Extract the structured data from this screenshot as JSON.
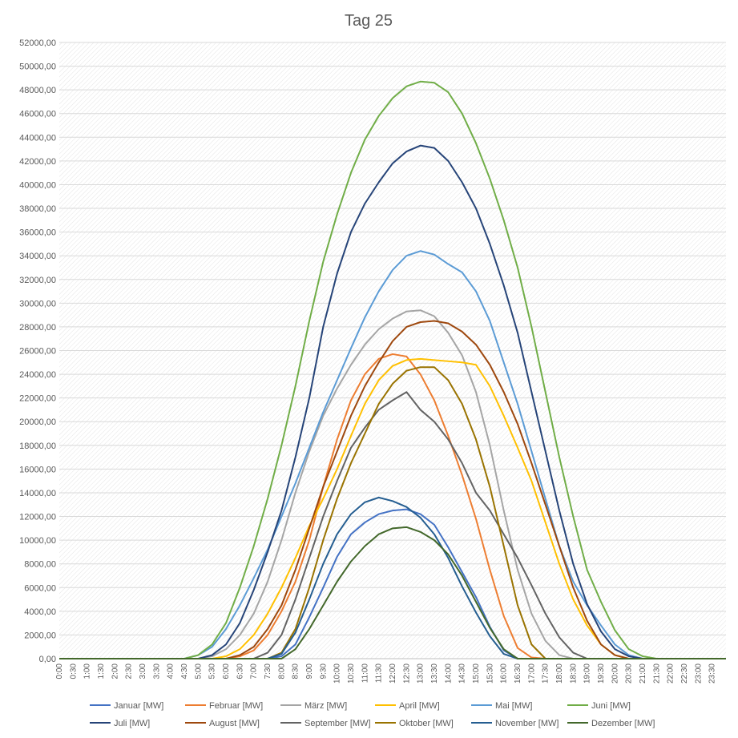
{
  "chart_data": {
    "type": "line",
    "title": "Tag 25",
    "xlabel": "",
    "ylabel": "",
    "ylim": [
      0,
      52000
    ],
    "y_step": 2000,
    "y_tick_labels": [
      "0,00",
      "2000,00",
      "4000,00",
      "6000,00",
      "8000,00",
      "10000,00",
      "12000,00",
      "14000,00",
      "16000,00",
      "18000,00",
      "20000,00",
      "22000,00",
      "24000,00",
      "26000,00",
      "28000,00",
      "30000,00",
      "32000,00",
      "34000,00",
      "36000,00",
      "38000,00",
      "40000,00",
      "42000,00",
      "44000,00",
      "46000,00",
      "48000,00",
      "50000,00",
      "52000,00"
    ],
    "x_tick_labels": [
      "0:00",
      "0:30",
      "1:00",
      "1:30",
      "2:00",
      "2:30",
      "3:00",
      "3:30",
      "4:00",
      "4:30",
      "5:00",
      "5:30",
      "6:00",
      "6:30",
      "7:00",
      "7:30",
      "8:00",
      "8:30",
      "9:00",
      "9:30",
      "10:00",
      "10:30",
      "11:00",
      "11:30",
      "12:00",
      "12:30",
      "13:00",
      "13:30",
      "14:00",
      "14:30",
      "15:00",
      "15:30",
      "16:00",
      "16:30",
      "17:00",
      "17:30",
      "18:00",
      "18:30",
      "19:00",
      "19:30",
      "20:00",
      "20:30",
      "21:00",
      "21:30",
      "22:00",
      "22:30",
      "23:00",
      "23:30"
    ],
    "x_unit": "hours",
    "grid": true,
    "legend_position": "bottom",
    "series": [
      {
        "name": "Januar [MW]",
        "color": "#4472c4",
        "x": [
          7.5,
          8,
          8.5,
          9,
          9.5,
          10,
          10.5,
          11,
          11.5,
          12,
          12.5,
          13,
          13.5,
          14,
          14.5,
          15,
          15.5,
          16,
          16.5
        ],
        "y": [
          0,
          200,
          1200,
          3500,
          6000,
          8600,
          10500,
          11500,
          12200,
          12500,
          12600,
          12200,
          11300,
          9400,
          7300,
          5200,
          2700,
          700,
          0
        ]
      },
      {
        "name": "Februar [MW]",
        "color": "#ed7d31",
        "x": [
          6,
          6.5,
          7,
          7.5,
          8,
          8.5,
          9,
          9.5,
          10,
          10.5,
          11,
          11.5,
          12,
          12.5,
          13,
          13.5,
          14,
          14.5,
          15,
          15.5,
          16,
          16.5,
          17,
          17.5
        ],
        "y": [
          0,
          200,
          700,
          2000,
          4000,
          6500,
          10000,
          14500,
          18500,
          21800,
          24000,
          25300,
          25700,
          25500,
          24000,
          21800,
          18800,
          15500,
          11800,
          7500,
          3600,
          900,
          100,
          0
        ]
      },
      {
        "name": "März [MW]",
        "color": "#a5a5a5",
        "x": [
          5,
          5.5,
          6,
          6.5,
          7,
          7.5,
          8,
          8.5,
          9,
          9.5,
          10,
          10.5,
          11,
          11.5,
          12,
          12.5,
          13,
          13.5,
          14,
          14.5,
          15,
          15.5,
          16,
          16.5,
          17,
          17.5,
          18,
          18.5,
          19
        ],
        "y": [
          0,
          200,
          800,
          2000,
          3800,
          6500,
          10000,
          14000,
          17500,
          20500,
          22800,
          24800,
          26500,
          27800,
          28700,
          29300,
          29400,
          28900,
          27500,
          25600,
          22500,
          18000,
          12500,
          7500,
          3800,
          1500,
          300,
          0,
          0
        ]
      },
      {
        "name": "April [MW]",
        "color": "#ffc000",
        "x": [
          5.5,
          6,
          6.5,
          7,
          7.5,
          8,
          8.5,
          9,
          9.5,
          10,
          10.5,
          11,
          11.5,
          12,
          12.5,
          13,
          13.5,
          14,
          14.5,
          15,
          15.5,
          16,
          16.5,
          17,
          17.5,
          18,
          18.5,
          19,
          19.5,
          20,
          20.5
        ],
        "y": [
          0,
          200,
          800,
          2000,
          3800,
          6000,
          8500,
          11200,
          13500,
          16000,
          18800,
          21500,
          23500,
          24700,
          25200,
          25300,
          25200,
          25100,
          25000,
          24800,
          23000,
          20500,
          17800,
          15000,
          11500,
          8000,
          5000,
          2800,
          1200,
          300,
          0
        ]
      },
      {
        "name": "Mai [MW]",
        "color": "#5b9bd5",
        "x": [
          4.5,
          5,
          5.5,
          6,
          6.5,
          7,
          7.5,
          8,
          8.5,
          9,
          9.5,
          10,
          10.5,
          11,
          11.5,
          12,
          12.5,
          13,
          13.5,
          14,
          14.5,
          15,
          15.5,
          16,
          16.5,
          17,
          17.5,
          18,
          18.5,
          19,
          19.5,
          20,
          20.5,
          21
        ],
        "y": [
          0,
          300,
          1000,
          2500,
          4500,
          6800,
          9200,
          12000,
          14800,
          17800,
          20800,
          23500,
          26200,
          28800,
          31000,
          32800,
          34000,
          34400,
          34100,
          33300,
          32600,
          31000,
          28500,
          25000,
          21500,
          17500,
          13500,
          9500,
          6500,
          4500,
          2800,
          1200,
          300,
          0
        ]
      },
      {
        "name": "Juni [MW]",
        "color": "#70ad47",
        "x": [
          4.5,
          5,
          5.5,
          6,
          6.5,
          7,
          7.5,
          8,
          8.5,
          9,
          9.5,
          10,
          10.5,
          11,
          11.5,
          12,
          12.5,
          13,
          13.5,
          14,
          14.5,
          15,
          15.5,
          16,
          16.5,
          17,
          17.5,
          18,
          18.5,
          19,
          19.5,
          20,
          20.5,
          21,
          21.5
        ],
        "y": [
          0,
          300,
          1200,
          3000,
          6000,
          9500,
          13500,
          18000,
          23000,
          28500,
          33500,
          37500,
          41000,
          43800,
          45800,
          47300,
          48300,
          48700,
          48600,
          47800,
          46000,
          43500,
          40500,
          37000,
          33000,
          28000,
          22500,
          17000,
          12000,
          7500,
          4800,
          2400,
          800,
          200,
          0
        ]
      },
      {
        "name": "Juli [MW]",
        "color": "#264478",
        "x": [
          5,
          5.5,
          6,
          6.5,
          7,
          7.5,
          8,
          8.5,
          9,
          9.5,
          10,
          10.5,
          11,
          11.5,
          12,
          12.5,
          13,
          13.5,
          14,
          14.5,
          15,
          15.5,
          16,
          16.5,
          17,
          17.5,
          18,
          18.5,
          19,
          19.5,
          20,
          20.5,
          21
        ],
        "y": [
          0,
          300,
          1200,
          3000,
          5800,
          9000,
          12500,
          17000,
          22000,
          28000,
          32500,
          36000,
          38400,
          40200,
          41800,
          42800,
          43300,
          43100,
          42000,
          40200,
          38000,
          35000,
          31500,
          27500,
          22500,
          17500,
          12500,
          8000,
          4600,
          2300,
          800,
          200,
          0
        ]
      },
      {
        "name": "August [MW]",
        "color": "#9e480e",
        "x": [
          6,
          6.5,
          7,
          7.5,
          8,
          8.5,
          9,
          9.5,
          10,
          10.5,
          11,
          11.5,
          12,
          12.5,
          13,
          13.5,
          14,
          14.5,
          15,
          15.5,
          16,
          16.5,
          17,
          17.5,
          18,
          18.5,
          19,
          19.5,
          20,
          20.5
        ],
        "y": [
          0,
          300,
          1000,
          2500,
          4500,
          7500,
          11000,
          14500,
          17500,
          20500,
          23000,
          25000,
          26800,
          28000,
          28400,
          28500,
          28300,
          27600,
          26500,
          24800,
          22500,
          19800,
          16500,
          13000,
          9500,
          6000,
          3200,
          1200,
          300,
          0
        ]
      },
      {
        "name": "September [MW]",
        "color": "#636363",
        "x": [
          7,
          7.5,
          8,
          8.5,
          9,
          9.5,
          10,
          10.5,
          11,
          11.5,
          12,
          12.5,
          13,
          13.5,
          14,
          14.5,
          15,
          15.5,
          16,
          16.5,
          17,
          17.5,
          18,
          18.5,
          19
        ],
        "y": [
          0,
          500,
          2000,
          5000,
          8500,
          12000,
          15000,
          17800,
          19500,
          21000,
          21800,
          22500,
          21000,
          20000,
          18500,
          16500,
          14000,
          12500,
          10500,
          8500,
          6200,
          3800,
          1800,
          500,
          0
        ]
      },
      {
        "name": "Oktober [MW]",
        "color": "#997300",
        "x": [
          7.5,
          8,
          8.5,
          9,
          9.5,
          10,
          10.5,
          11,
          11.5,
          12,
          12.5,
          13,
          13.5,
          14,
          14.5,
          15,
          15.5,
          16,
          16.5,
          17,
          17.5
        ],
        "y": [
          0,
          500,
          2500,
          6000,
          10000,
          13500,
          16500,
          19000,
          21500,
          23200,
          24300,
          24600,
          24600,
          23500,
          21500,
          18500,
          14500,
          9500,
          4500,
          1200,
          0
        ]
      },
      {
        "name": "November [MW]",
        "color": "#255e91",
        "x": [
          7.5,
          8,
          8.5,
          9,
          9.5,
          10,
          10.5,
          11,
          11.5,
          12,
          12.5,
          13,
          13.5,
          14,
          14.5,
          15,
          15.5,
          16,
          16.5
        ],
        "y": [
          0,
          400,
          2200,
          5000,
          8000,
          10500,
          12200,
          13200,
          13600,
          13300,
          12800,
          11900,
          10500,
          8500,
          6100,
          3900,
          1900,
          400,
          0
        ]
      },
      {
        "name": "Dezember [MW]",
        "color": "#43682b",
        "x": [
          8,
          8.5,
          9,
          9.5,
          10,
          10.5,
          11,
          11.5,
          12,
          12.5,
          13,
          13.5,
          14,
          14.5,
          15,
          15.5,
          16,
          16.5
        ],
        "y": [
          0,
          800,
          2500,
          4500,
          6500,
          8200,
          9500,
          10500,
          11000,
          11100,
          10700,
          10000,
          8800,
          7000,
          4800,
          2600,
          800,
          0
        ]
      }
    ]
  }
}
